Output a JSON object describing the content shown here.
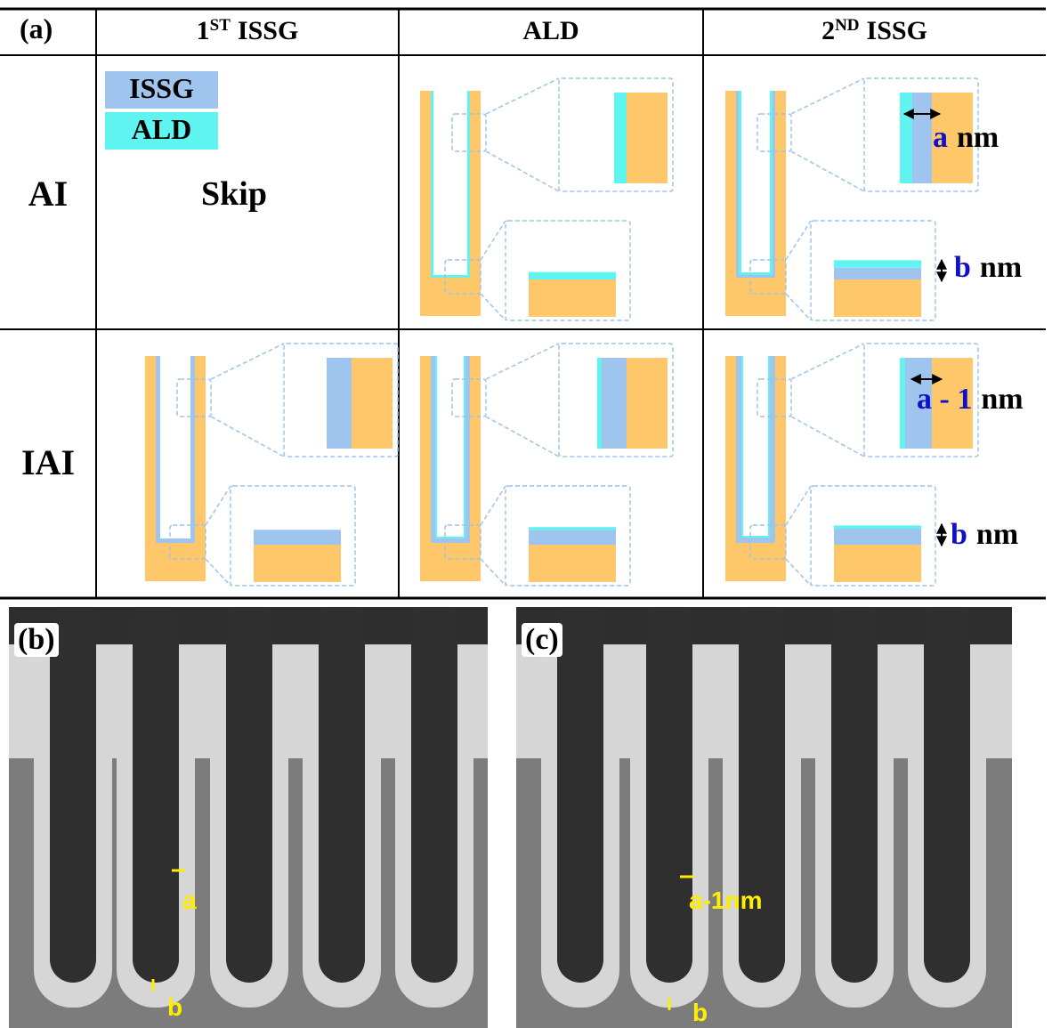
{
  "panel_a": {
    "label": "(a)",
    "columns": [
      {
        "base": "1",
        "sup": "ST",
        "text": "ISSG"
      },
      {
        "text": "ALD"
      },
      {
        "base": "2",
        "sup": "ND",
        "text": "ISSG"
      }
    ],
    "legend": [
      "ISSG",
      "ALD"
    ],
    "rows": [
      "AI",
      "IAI"
    ],
    "skip": "Skip",
    "annotations": [
      {
        "var": "a",
        "unit": "nm"
      },
      {
        "var": "b",
        "unit": "nm"
      },
      {
        "var": "a - 1",
        "unit": "nm"
      },
      {
        "var": "b",
        "unit": "nm"
      }
    ]
  },
  "panel_b": {
    "label": "(b)",
    "marks": [
      "a",
      "b"
    ]
  },
  "panel_c": {
    "label": "(c)",
    "marks": [
      "a-1nm",
      "b"
    ]
  }
}
